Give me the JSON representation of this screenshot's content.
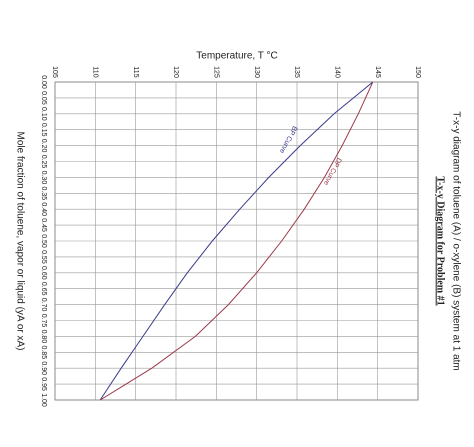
{
  "chart_data": {
    "type": "line",
    "title": "T-x-y Diagram for Problem #1",
    "subtitle": "T-x-y diagram of toluene (A) / o-xylene (B) system at 1 atm",
    "y_label": "Temperature, T °C",
    "x_label": "Mole fraction of toluene, vapor or liquid (yA or xA)",
    "x": [
      0,
      0.1,
      0.2,
      0.3,
      0.4,
      0.5,
      0.6,
      0.7,
      0.8,
      0.9,
      1.0
    ],
    "series": [
      {
        "name": "BP Curve",
        "color": "#3a3a8c",
        "values": [
          144.4,
          139.6,
          135.4,
          131.5,
          127.9,
          124.5,
          121.4,
          118.6,
          115.9,
          113.2,
          110.6
        ]
      },
      {
        "name": "DP Curve",
        "color": "#9c3a4a",
        "values": [
          144.4,
          142.6,
          140.6,
          138.4,
          135.9,
          133.1,
          130.0,
          126.5,
          122.4,
          117.0,
          110.6
        ]
      }
    ],
    "ylim": [
      105,
      150
    ],
    "yticks": [
      105,
      110,
      115,
      120,
      125,
      130,
      135,
      140,
      145,
      150
    ],
    "xlim": [
      0,
      1
    ],
    "xticks": [
      {
        "value": 0,
        "label": "0.00"
      },
      {
        "value": 0.05,
        "label": "0.05"
      },
      {
        "value": 0.1,
        "label": "0.10"
      },
      {
        "value": 0.15,
        "label": "0.15"
      },
      {
        "value": 0.2,
        "label": "0.20"
      },
      {
        "value": 0.25,
        "label": "0.25"
      },
      {
        "value": 0.3,
        "label": "0.30"
      },
      {
        "value": 0.35,
        "label": "0.35"
      },
      {
        "value": 0.4,
        "label": "0.40"
      },
      {
        "value": 0.45,
        "label": "0.45"
      },
      {
        "value": 0.5,
        "label": "0.50"
      },
      {
        "value": 0.55,
        "label": "0.55"
      },
      {
        "value": 0.6,
        "label": "0.60"
      },
      {
        "value": 0.65,
        "label": "0.65"
      },
      {
        "value": 0.7,
        "label": "0.70"
      },
      {
        "value": 0.75,
        "label": "0.75"
      },
      {
        "value": 0.8,
        "label": "0.80"
      },
      {
        "value": 0.85,
        "label": "0.85"
      },
      {
        "value": 0.9,
        "label": "0.90"
      },
      {
        "value": 0.95,
        "label": "0.95"
      },
      {
        "value": 1.0,
        "label": "1.00"
      }
    ],
    "grid": true
  }
}
